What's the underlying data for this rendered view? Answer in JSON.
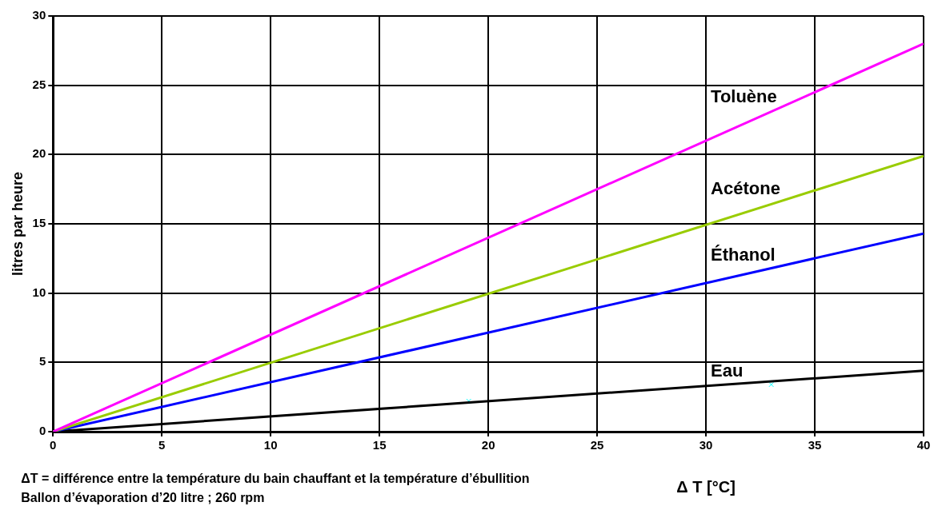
{
  "chart_data": {
    "type": "line",
    "xlabel": "Δ T [°C]",
    "ylabel": "litres par heure",
    "xlim": [
      0,
      40
    ],
    "xticks": [
      0,
      5,
      10,
      15,
      20,
      25,
      30,
      35,
      40
    ],
    "ylim": [
      0,
      30
    ],
    "yticks": [
      0,
      5,
      10,
      15,
      20,
      25,
      30
    ],
    "grid": true,
    "legend": false,
    "series": [
      {
        "name": "Toluène",
        "color": "#ff00ff",
        "x": [
          0,
          40
        ],
        "values": [
          0,
          28
        ]
      },
      {
        "name": "Acétone",
        "color": "#99cc00",
        "x": [
          0,
          40
        ],
        "values": [
          0,
          19.9
        ]
      },
      {
        "name": "Éthanol",
        "color": "#0000ff",
        "x": [
          0,
          40
        ],
        "values": [
          0,
          14.3
        ]
      },
      {
        "name": "Eau",
        "color": "#000000",
        "x": [
          0,
          40
        ],
        "values": [
          0,
          4.4
        ]
      },
      {
        "type": "scatter",
        "color": "#00ffff",
        "marker": "cross",
        "x": [
          19.1,
          33
        ],
        "values": [
          2.2,
          3.4
        ]
      }
    ],
    "annotations": [
      "ΔT = différence entre la température du bain chauffant et la température d’ébullition",
      "Ballon d’évaporation d’20 litre ; 260 rpm"
    ]
  }
}
